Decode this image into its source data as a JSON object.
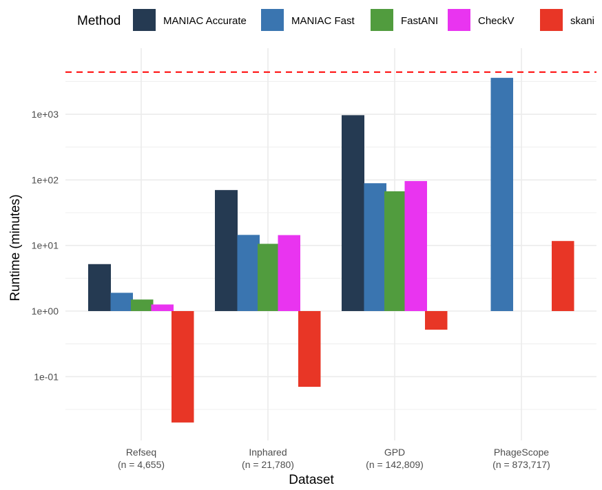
{
  "chart_data": {
    "type": "bar",
    "title": "",
    "xlabel": "Dataset",
    "ylabel": "Runtime (minutes)",
    "yscale": "log10",
    "bar_baseline": 1,
    "ylim": [
      0.008,
      6000
    ],
    "y_ticks": [
      {
        "value": 0.1,
        "label": "1e-01"
      },
      {
        "value": 1,
        "label": "1e+00"
      },
      {
        "value": 10,
        "label": "1e+01"
      },
      {
        "value": 100,
        "label": "1e+02"
      },
      {
        "value": 1000,
        "label": "1e+03"
      }
    ],
    "grid": true,
    "categories": [
      {
        "name": "Refseq",
        "n_label": "(n = 4,655)"
      },
      {
        "name": "Inphared",
        "n_label": "(n = 21,780)"
      },
      {
        "name": "GPD",
        "n_label": "(n = 142,809)"
      },
      {
        "name": "PhageScope",
        "n_label": "(n = 873,717)"
      }
    ],
    "legend": {
      "title": "Method",
      "position": "top"
    },
    "series": [
      {
        "name": "MANIAC Accurate",
        "color": "#253a52",
        "values": [
          5.2,
          70,
          970,
          null
        ]
      },
      {
        "name": "MANIAC Fast",
        "color": "#3a75b0",
        "values": [
          1.9,
          14.5,
          89,
          3600
        ]
      },
      {
        "name": "FastANI",
        "color": "#519c3e",
        "values": [
          1.5,
          10.6,
          67,
          null
        ]
      },
      {
        "name": "CheckV",
        "color": "#e934f0",
        "values": [
          1.26,
          14.4,
          96,
          null
        ]
      },
      {
        "name": "skani",
        "color": "#e83626",
        "values": [
          0.02,
          0.07,
          0.52,
          11.7
        ]
      }
    ],
    "reference_line": {
      "value": 4400,
      "style": "dashed",
      "color": "#ff0000"
    }
  }
}
